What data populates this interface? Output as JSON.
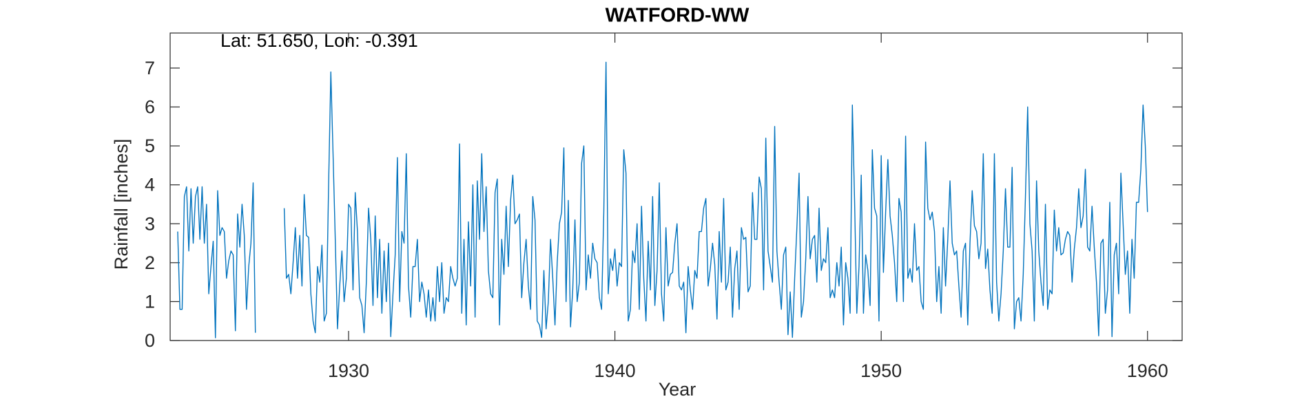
{
  "chart_data": {
    "type": "line",
    "title": "WATFORD-WW",
    "annotation": "Lat: 51.650, Lon: -0.391",
    "xlabel": "Year",
    "ylabel": "Rainfall [inches]",
    "xlim": [
      1923.3,
      1961.3
    ],
    "ylim": [
      0,
      7.9
    ],
    "x_ticks": [
      1930,
      1940,
      1950,
      1960
    ],
    "x_tick_labels": [
      "1930",
      "1940",
      "1950",
      "1960"
    ],
    "y_ticks": [
      0,
      1,
      2,
      3,
      4,
      5,
      6,
      7
    ],
    "y_tick_labels": [
      "0",
      "1",
      "2",
      "3",
      "4",
      "5",
      "6",
      "7"
    ],
    "grid": false,
    "legend": "none",
    "line_color": "#0072BD",
    "series": [
      {
        "segments": [
          {
            "start": [
              1923,
              8
            ],
            "values": [
              2.8,
              0.8,
              0.8,
              3.7,
              3.95,
              2.3,
              3.9,
              2.5,
              3.7,
              3.95,
              2.6,
              3.95,
              2.5,
              3.5,
              1.2,
              1.9,
              2.55,
              0.07,
              3.85,
              2.7,
              2.9,
              2.8,
              1.6,
              2.05,
              2.3,
              2.2,
              0.25,
              3.25,
              2.4,
              3.5,
              2.7,
              0.8,
              1.9,
              2.5,
              4.05,
              0.2
            ]
          },
          {
            "start": [
              1927,
              8
            ],
            "values": [
              3.4,
              1.6,
              1.7,
              1.2,
              2.0,
              2.9,
              1.6,
              2.7,
              1.4,
              3.75,
              2.7,
              2.65,
              1.2,
              0.5,
              0.2,
              1.9,
              1.5,
              2.45,
              0.5,
              0.7,
              4.0,
              6.9,
              4.8,
              2.6,
              0.3,
              1.4,
              2.3,
              1.0,
              1.6,
              3.5,
              3.4,
              1.3,
              3.8,
              2.8,
              1.1,
              0.9,
              0.2,
              1.5,
              3.4,
              2.6,
              0.9,
              3.2,
              1.1,
              2.6,
              0.7,
              2.3,
              1.0,
              2.5,
              0.1,
              1.2,
              2.2,
              4.7,
              1.0,
              2.8,
              2.5,
              4.8,
              1.4,
              0.6,
              1.9,
              1.9,
              2.6,
              1.0,
              1.5,
              1.2,
              0.6,
              1.3,
              0.5,
              1.1,
              0.5,
              1.9,
              1.0,
              2.0,
              0.7,
              1.1,
              1.0,
              1.9,
              1.6,
              1.4,
              1.6,
              5.05,
              0.7,
              2.6,
              0.4,
              3.05,
              1.4,
              4.0,
              0.6,
              4.1,
              2.6,
              4.8,
              2.8,
              3.95,
              1.8,
              1.2,
              1.1,
              3.8,
              4.15,
              0.4,
              2.6,
              1.7,
              3.45,
              1.9,
              3.6,
              4.25,
              3.0,
              3.1,
              3.25,
              1.1,
              2.0,
              2.6,
              1.4,
              0.8,
              3.7,
              3.1,
              0.5,
              0.4,
              0.08,
              1.8,
              0.3,
              1.0,
              2.6,
              1.6,
              0.4,
              2.0,
              3.0,
              3.3,
              4.95,
              1.0,
              3.6,
              0.35,
              1.3,
              3.1,
              1.0,
              1.5,
              4.55,
              5.0,
              1.3,
              2.2,
              1.6,
              2.5,
              2.1,
              2.0,
              1.1,
              0.8,
              3.3,
              7.15,
              1.2,
              2.1,
              1.8,
              2.35,
              1.4,
              2.0,
              1.9,
              4.9,
              4.3,
              0.5,
              0.8,
              2.3,
              2.0,
              3.0,
              0.8,
              3.45,
              1.6,
              0.5,
              2.55,
              1.3,
              3.7,
              0.9,
              1.8,
              4.05,
              1.2,
              0.5,
              2.9,
              1.4,
              1.7,
              1.75,
              2.5,
              3.0,
              1.4,
              1.3,
              1.5,
              0.2,
              1.9,
              1.3,
              0.8,
              1.8,
              1.6,
              2.8,
              2.8,
              3.4,
              3.65,
              1.4,
              1.85,
              2.5,
              1.95,
              0.55,
              2.8,
              1.5,
              3.65,
              1.3,
              1.5,
              2.4,
              0.6,
              1.85,
              2.3,
              0.8,
              2.9,
              2.6,
              2.65,
              1.25,
              1.4,
              3.8,
              2.6,
              2.6,
              4.2,
              3.9,
              1.3,
              5.2,
              2.3,
              1.9,
              1.5,
              5.5,
              2.3,
              1.5,
              0.8,
              2.2,
              2.4,
              0.15,
              1.25,
              0.08,
              1.6,
              2.9,
              4.3,
              0.6,
              1.0,
              2.1,
              3.7,
              2.1,
              2.6,
              2.7,
              1.5,
              3.4,
              1.8,
              2.1,
              2.0,
              2.9,
              1.1,
              1.3,
              1.1,
              2.0,
              1.4,
              2.4,
              0.4,
              2.0,
              1.6,
              0.7,
              6.05,
              3.6,
              0.7,
              1.9,
              4.25,
              0.7,
              2.2,
              1.8,
              0.9,
              4.9,
              3.4,
              3.2,
              0.5,
              4.75,
              1.75,
              3.3,
              4.65,
              3.2,
              2.7,
              2.0,
              1.0,
              3.65,
              3.3,
              1.0,
              5.25,
              1.6,
              1.85,
              1.5,
              3.0,
              1.8,
              1.9,
              1.0,
              0.8,
              5.1,
              3.4,
              3.1,
              3.3,
              2.8,
              1.0,
              1.9,
              0.7,
              2.9,
              1.4,
              2.6,
              4.1,
              2.5,
              2.2,
              2.3,
              1.4,
              0.6,
              2.3,
              2.5,
              0.4,
              2.5,
              3.85,
              2.95,
              2.8,
              2.1,
              2.5,
              4.8,
              1.85,
              2.35,
              1.3,
              0.7,
              4.8,
              1.5,
              0.5,
              1.2,
              2.3,
              3.9,
              2.4,
              2.4,
              4.45,
              0.3,
              1.0,
              1.1,
              0.5,
              1.7,
              3.7,
              6.0,
              3.0,
              2.3,
              0.5,
              4.1,
              2.3,
              1.5,
              0.9,
              3.5,
              0.8,
              1.3,
              1.2,
              3.35,
              2.3,
              2.9,
              2.2,
              2.25,
              2.6,
              2.8,
              2.7,
              1.5,
              2.35,
              2.9,
              3.9,
              2.9,
              3.2,
              4.4,
              2.4,
              2.3,
              3.45,
              2.4,
              1.5,
              0.12,
              2.5,
              2.6,
              0.7,
              1.3,
              3.55,
              0.1,
              2.2,
              2.5,
              1.2,
              4.3,
              3.0,
              1.7,
              2.3,
              0.7,
              2.6,
              1.6,
              3.55,
              3.55,
              4.4,
              6.05,
              5.0,
              3.3
            ]
          }
        ]
      }
    ]
  }
}
